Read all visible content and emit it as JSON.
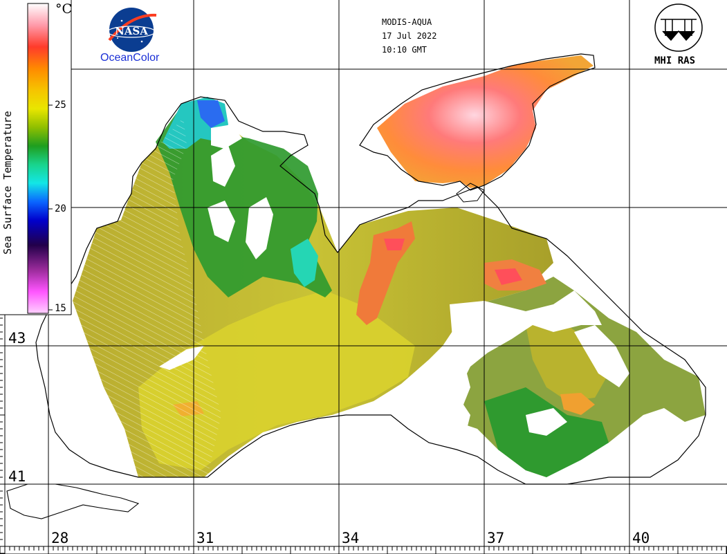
{
  "header": {
    "satellite": "MODIS-AQUA",
    "date": "17 Jul 2022",
    "time": "10:10 GMT"
  },
  "logos": {
    "nasa_text": "NASA",
    "oceancolor": "OceanColor",
    "mhi": "MHI RAS"
  },
  "colorbar": {
    "title": "Sea Surface Temperature",
    "unit": "°C",
    "ticks": [
      "25",
      "20",
      "15"
    ],
    "colors": [
      "#ffffff",
      "#ff9aaa",
      "#ff3b2b",
      "#ff8a00",
      "#f6c400",
      "#e9e600",
      "#8fbf00",
      "#1f9e1f",
      "#19d48c",
      "#13e6e6",
      "#0a66ff",
      "#0000cc",
      "#22004a",
      "#9b2b9b",
      "#ff55ff",
      "#ffd0ff"
    ]
  },
  "axes": {
    "longitude_labels": [
      "28",
      "31",
      "34",
      "37",
      "40"
    ],
    "latitude_labels": [
      "43",
      "41"
    ]
  },
  "palette": {
    "hot": "#ff4040",
    "warm": "#f7a13a",
    "yellow": "#e3d428",
    "olive": "#a9a72a",
    "green": "#2f9a2f",
    "cyan": "#22d0c8",
    "blue": "#2a6cf0"
  }
}
